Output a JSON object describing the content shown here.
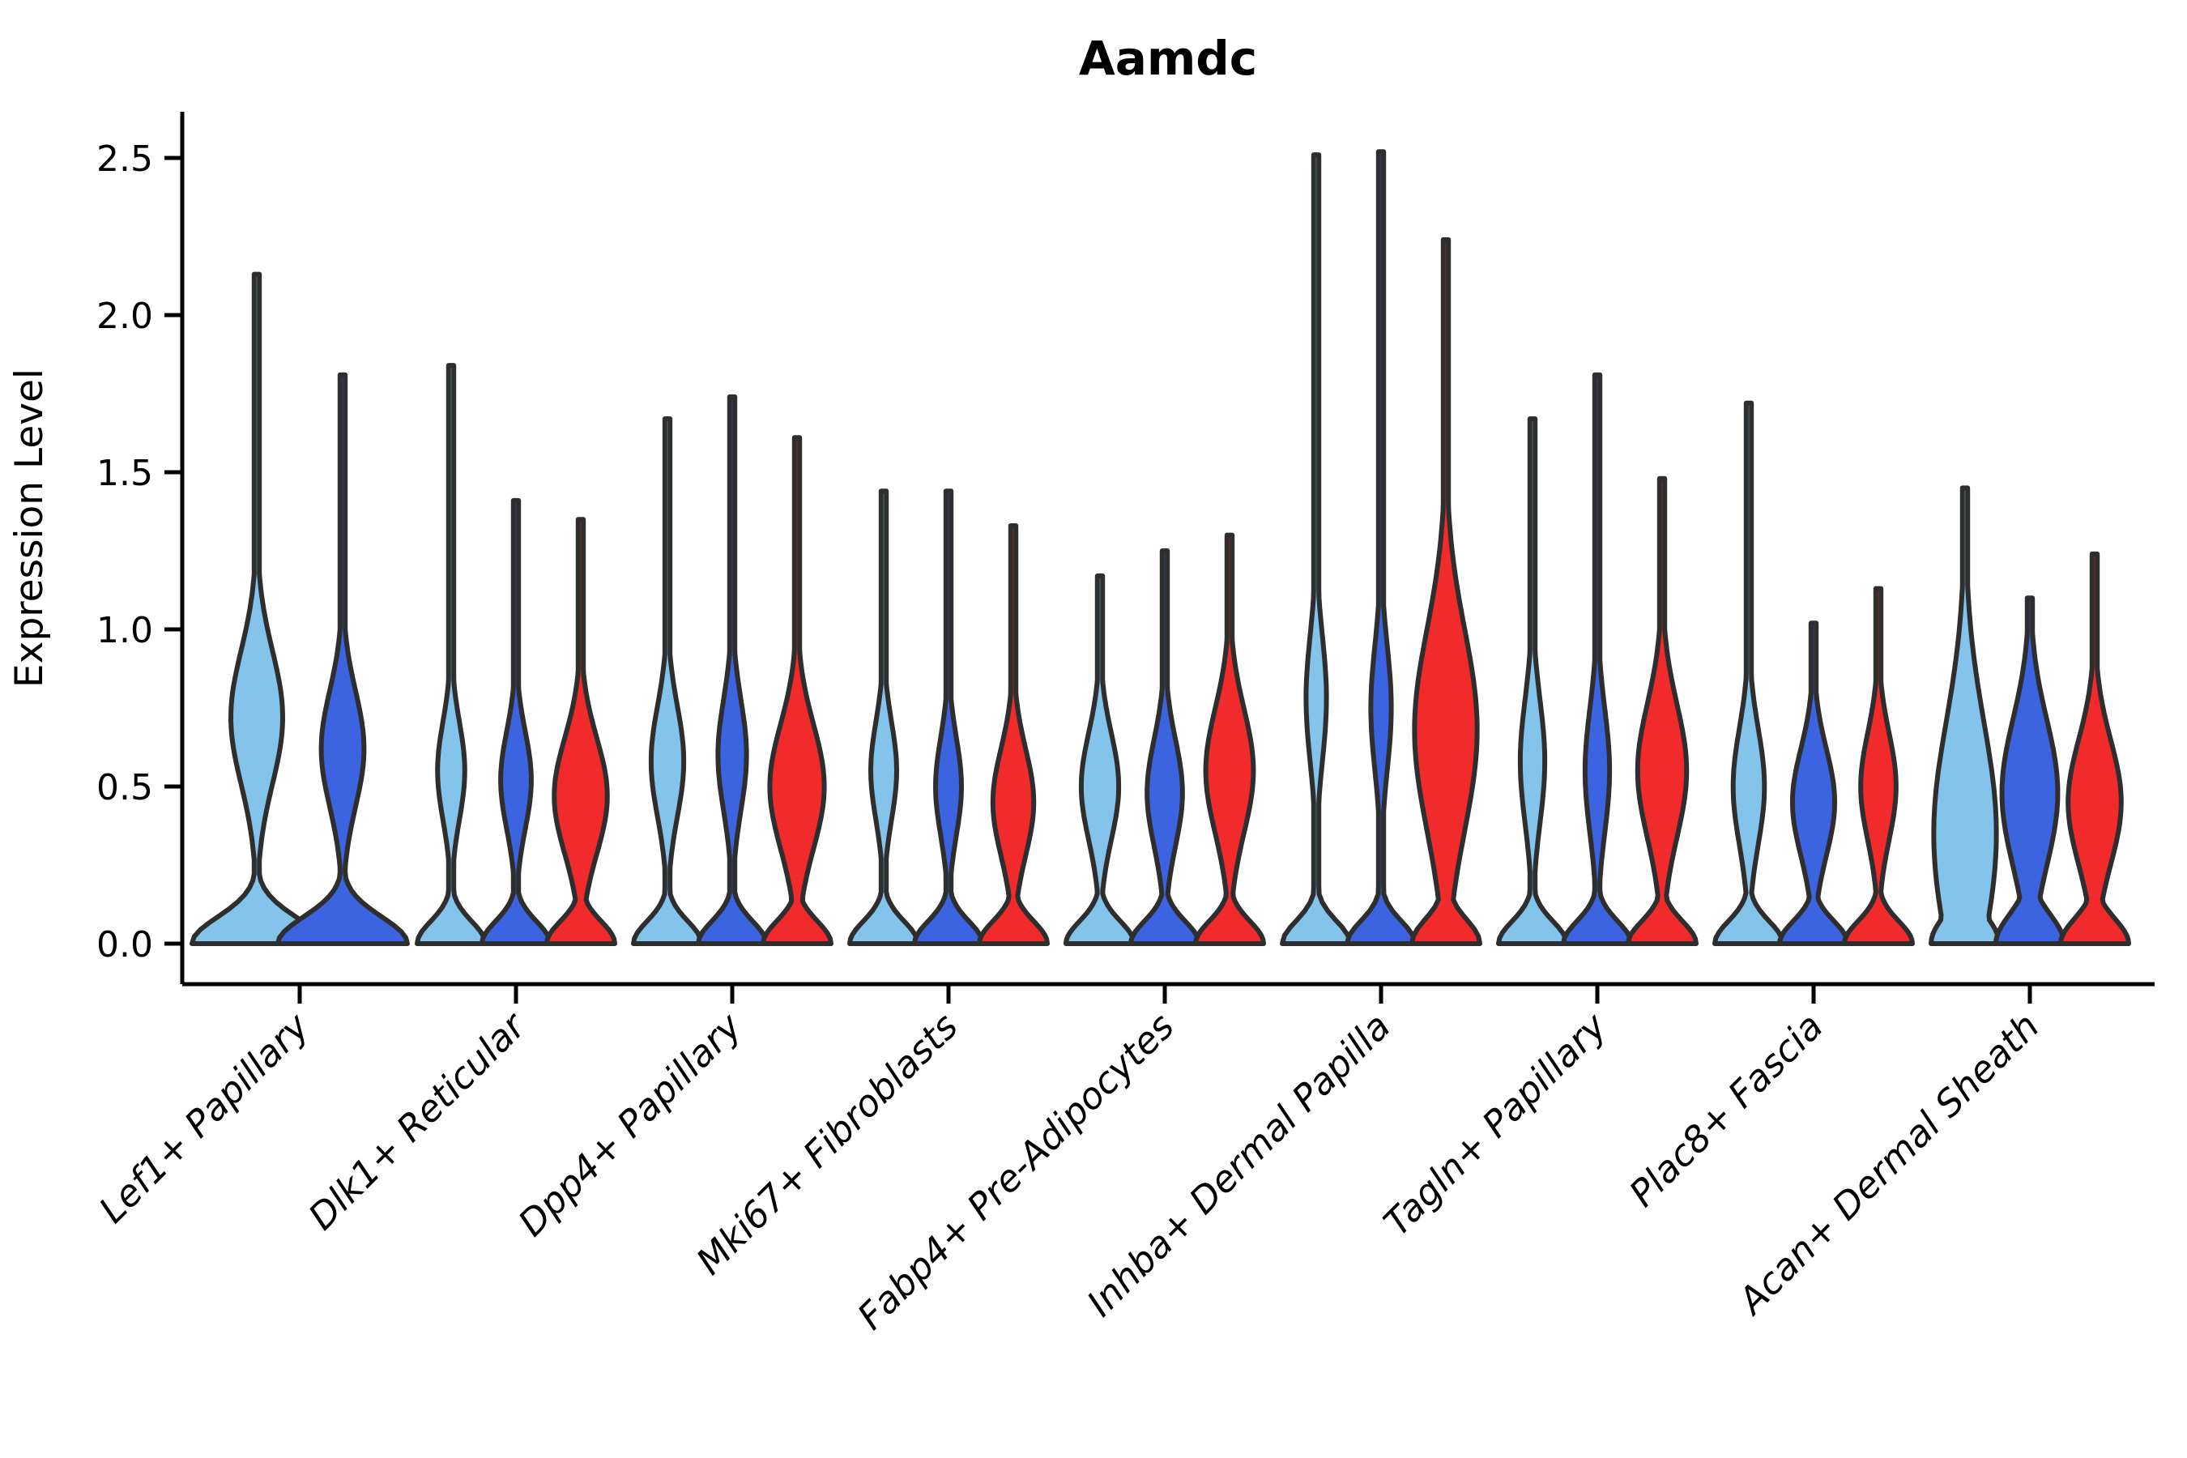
{
  "chart_data": {
    "type": "violin",
    "title": "Aamdc",
    "xlabel": "",
    "ylabel": "Expression Level",
    "yticks": [
      "0.0",
      "0.5",
      "1.0",
      "1.5",
      "2.0",
      "2.5"
    ],
    "ytick_values": [
      0.0,
      0.5,
      1.0,
      1.5,
      2.0,
      2.5
    ],
    "ylim": [
      -0.13,
      2.64
    ],
    "grid": false,
    "legend": "none",
    "palette": {
      "blue_light": "#85C4EA",
      "blue_dark": "#3D64E0",
      "red": "#F12B2B"
    },
    "outline_color": "#2E2E2E",
    "axis_color": "#000000",
    "groups": [
      {
        "label": "Lef1+ Papillary",
        "violins": [
          {
            "color": "blue_light",
            "peak": 2.13,
            "bulge_center": 0.72,
            "bulge_spread": 0.3,
            "bulge_amp": 0.4,
            "base_decay": 0.12
          },
          {
            "color": "blue_dark",
            "peak": 1.81,
            "bulge_center": 0.62,
            "bulge_spread": 0.26,
            "bulge_amp": 0.33,
            "base_decay": 0.12
          }
        ]
      },
      {
        "label": "Dlk1+ Reticular",
        "violins": [
          {
            "color": "blue_light",
            "peak": 1.84,
            "bulge_center": 0.55,
            "bulge_spread": 0.22,
            "bulge_amp": 0.4,
            "base_decay": 0.1
          },
          {
            "color": "blue_dark",
            "peak": 1.41,
            "bulge_center": 0.52,
            "bulge_spread": 0.22,
            "bulge_amp": 0.45,
            "base_decay": 0.1
          },
          {
            "color": "red",
            "peak": 1.35,
            "bulge_center": 0.47,
            "bulge_spread": 0.26,
            "bulge_amp": 0.78,
            "base_decay": 0.1
          }
        ]
      },
      {
        "label": "Dpp4+ Papillary",
        "violins": [
          {
            "color": "blue_light",
            "peak": 1.67,
            "bulge_center": 0.58,
            "bulge_spread": 0.25,
            "bulge_amp": 0.48,
            "base_decay": 0.1
          },
          {
            "color": "blue_dark",
            "peak": 1.74,
            "bulge_center": 0.6,
            "bulge_spread": 0.25,
            "bulge_amp": 0.42,
            "base_decay": 0.1
          },
          {
            "color": "red",
            "peak": 1.61,
            "bulge_center": 0.5,
            "bulge_spread": 0.28,
            "bulge_amp": 0.8,
            "base_decay": 0.1
          }
        ]
      },
      {
        "label": "Mki67+ Fibroblasts",
        "violins": [
          {
            "color": "blue_light",
            "peak": 1.44,
            "bulge_center": 0.55,
            "bulge_spread": 0.22,
            "bulge_amp": 0.38,
            "base_decay": 0.1
          },
          {
            "color": "blue_dark",
            "peak": 1.44,
            "bulge_center": 0.5,
            "bulge_spread": 0.22,
            "bulge_amp": 0.38,
            "base_decay": 0.1
          },
          {
            "color": "red",
            "peak": 1.33,
            "bulge_center": 0.45,
            "bulge_spread": 0.24,
            "bulge_amp": 0.6,
            "base_decay": 0.1
          }
        ]
      },
      {
        "label": "Fabp4+ Pre-Adipocytes",
        "violins": [
          {
            "color": "blue_light",
            "peak": 1.17,
            "bulge_center": 0.5,
            "bulge_spread": 0.24,
            "bulge_amp": 0.55,
            "base_decay": 0.1
          },
          {
            "color": "blue_dark",
            "peak": 1.25,
            "bulge_center": 0.48,
            "bulge_spread": 0.24,
            "bulge_amp": 0.52,
            "base_decay": 0.1
          },
          {
            "color": "red",
            "peak": 1.3,
            "bulge_center": 0.55,
            "bulge_spread": 0.28,
            "bulge_amp": 0.7,
            "base_decay": 0.1
          }
        ]
      },
      {
        "label": "Inhba+ Dermal Papilla",
        "violins": [
          {
            "color": "blue_light",
            "peak": 2.51,
            "bulge_center": 0.78,
            "bulge_spread": 0.28,
            "bulge_amp": 0.3,
            "base_decay": 0.1
          },
          {
            "color": "blue_dark",
            "peak": 2.52,
            "bulge_center": 0.75,
            "bulge_spread": 0.28,
            "bulge_amp": 0.3,
            "base_decay": 0.1
          },
          {
            "color": "red",
            "peak": 2.24,
            "bulge_center": 0.68,
            "bulge_spread": 0.45,
            "bulge_amp": 0.92,
            "base_decay": 0.11
          }
        ]
      },
      {
        "label": "Tagln+ Papillary",
        "violins": [
          {
            "color": "blue_light",
            "peak": 1.67,
            "bulge_center": 0.58,
            "bulge_spread": 0.28,
            "bulge_amp": 0.36,
            "base_decay": 0.1
          },
          {
            "color": "blue_dark",
            "peak": 1.81,
            "bulge_center": 0.55,
            "bulge_spread": 0.28,
            "bulge_amp": 0.36,
            "base_decay": 0.1
          },
          {
            "color": "red",
            "peak": 1.48,
            "bulge_center": 0.55,
            "bulge_spread": 0.3,
            "bulge_amp": 0.72,
            "base_decay": 0.1
          }
        ]
      },
      {
        "label": "Plac8+ Fascia",
        "violins": [
          {
            "color": "blue_light",
            "peak": 1.72,
            "bulge_center": 0.5,
            "bulge_spread": 0.26,
            "bulge_amp": 0.46,
            "base_decay": 0.1
          },
          {
            "color": "blue_dark",
            "peak": 1.02,
            "bulge_center": 0.45,
            "bulge_spread": 0.24,
            "bulge_amp": 0.62,
            "base_decay": 0.1
          },
          {
            "color": "red",
            "peak": 1.13,
            "bulge_center": 0.5,
            "bulge_spread": 0.24,
            "bulge_amp": 0.52,
            "base_decay": 0.1
          }
        ]
      },
      {
        "label": "Acan+ Dermal Sheath",
        "violins": [
          {
            "color": "blue_light",
            "peak": 1.45,
            "bulge_center": 0.35,
            "bulge_spread": 0.5,
            "bulge_amp": 0.92,
            "base_decay": 0.13
          },
          {
            "color": "blue_dark",
            "peak": 1.1,
            "bulge_center": 0.48,
            "bulge_spread": 0.33,
            "bulge_amp": 0.82,
            "base_decay": 0.13
          },
          {
            "color": "red",
            "peak": 1.24,
            "bulge_center": 0.45,
            "bulge_spread": 0.28,
            "bulge_amp": 0.78,
            "base_decay": 0.11
          }
        ]
      }
    ]
  }
}
